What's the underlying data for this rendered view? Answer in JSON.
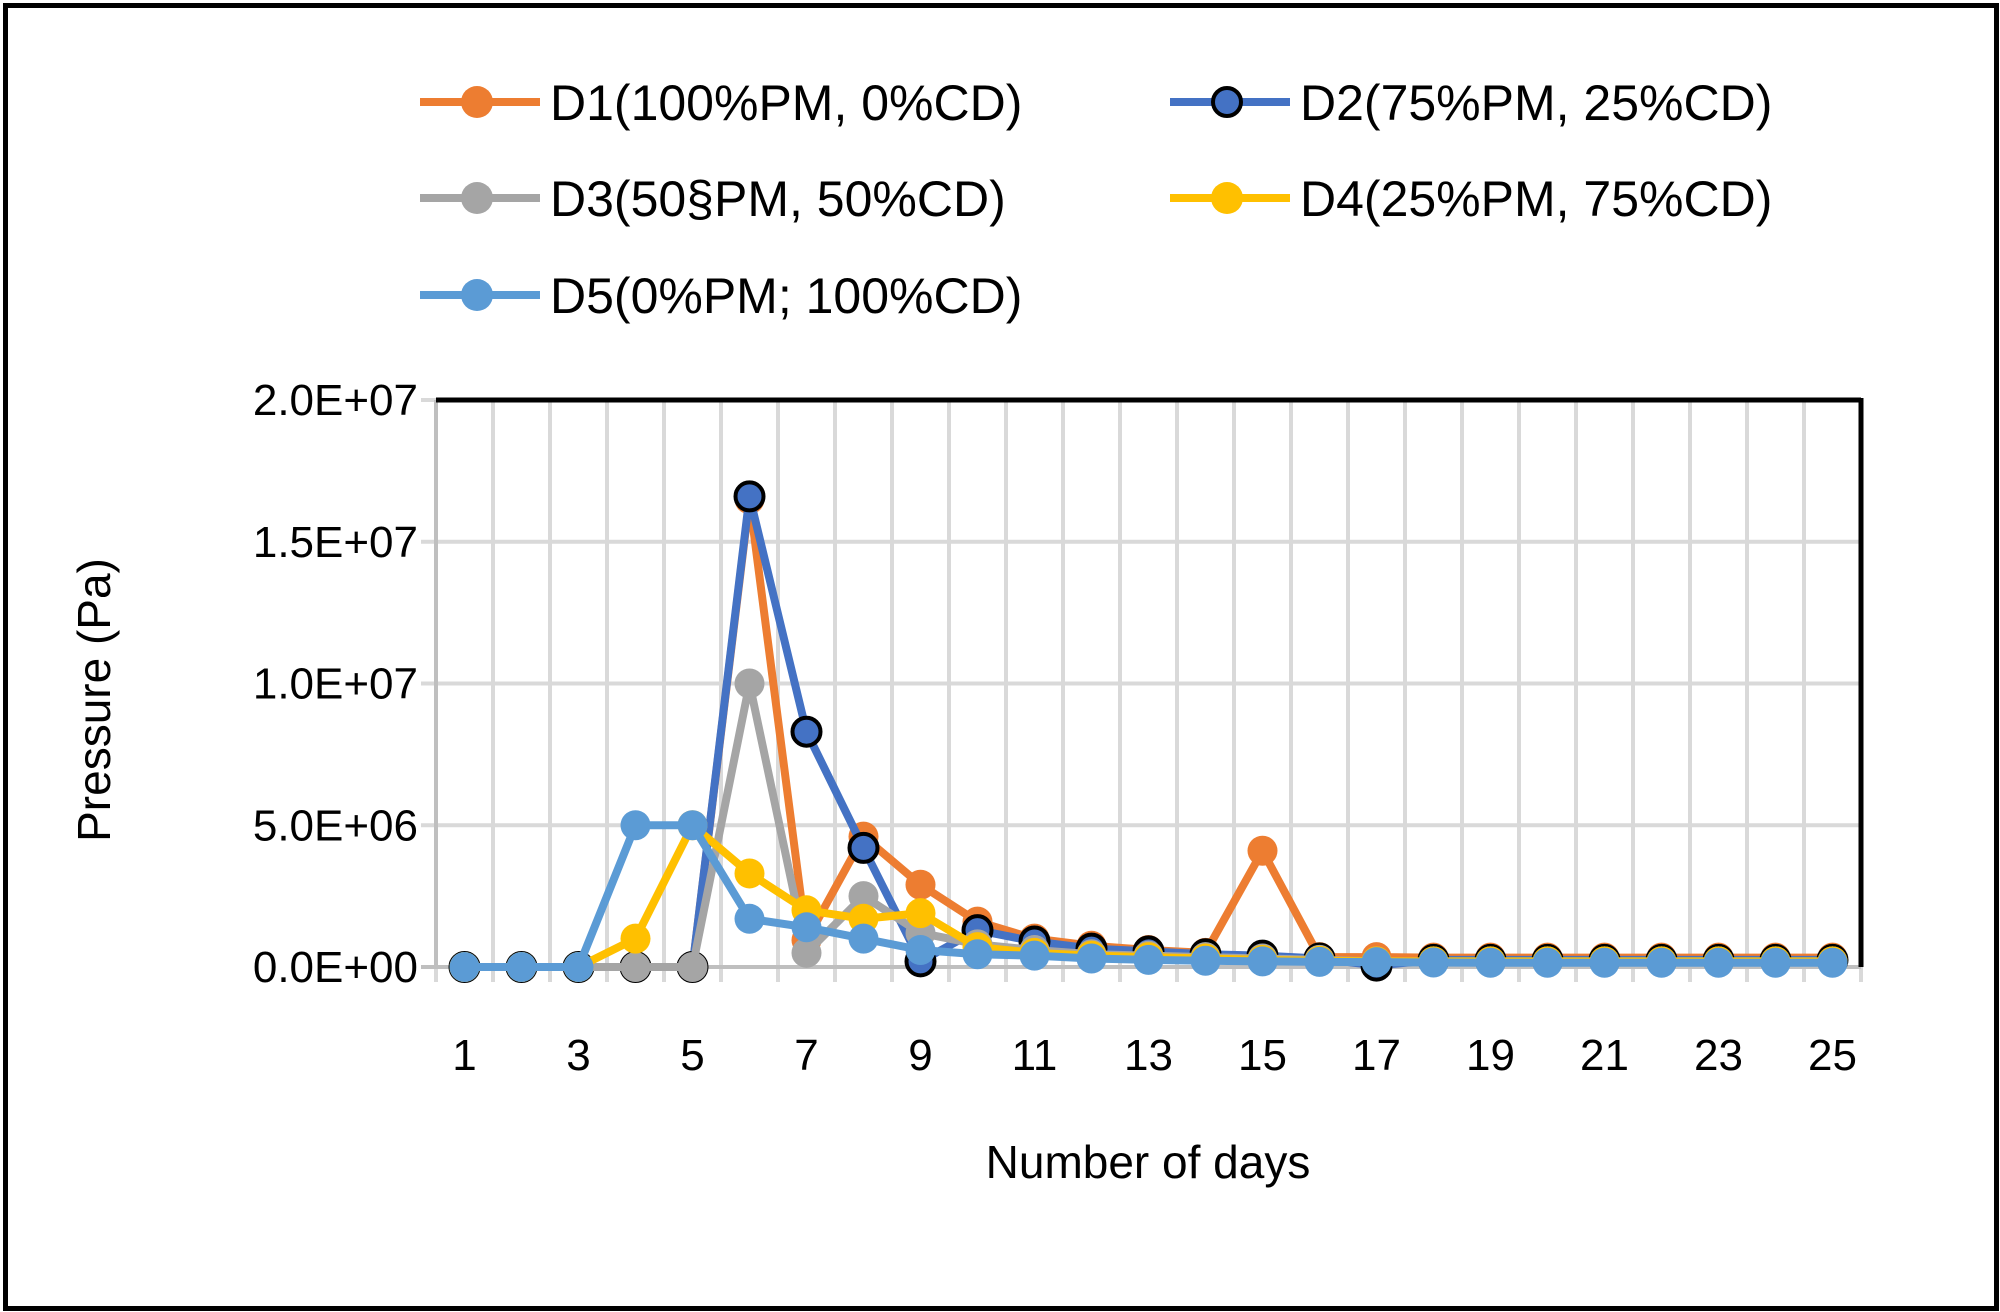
{
  "chart_data": {
    "type": "line",
    "title": "",
    "xlabel": "Number of days",
    "ylabel": "Pressure (Pa)",
    "x": [
      1,
      2,
      3,
      4,
      5,
      6,
      7,
      8,
      9,
      10,
      11,
      12,
      13,
      14,
      15,
      16,
      17,
      18,
      19,
      20,
      21,
      22,
      23,
      24,
      25
    ],
    "x_tick_labels": [
      "1",
      "3",
      "5",
      "7",
      "9",
      "11",
      "13",
      "15",
      "17",
      "19",
      "21",
      "23",
      "25"
    ],
    "y_tick_labels": [
      "0.0E+00",
      "5.0E+06",
      "1.0E+07",
      "1.5E+07",
      "2.0E+07"
    ],
    "y_ticks": [
      0,
      5000000,
      10000000,
      15000000,
      20000000
    ],
    "ylim": [
      0,
      20000000
    ],
    "grid": true,
    "legend_position": "top",
    "series": [
      {
        "name": "D1(100%PM, 0%CD)",
        "color": "#ED7D31",
        "marker_outline": null,
        "values": [
          0,
          0,
          0,
          0,
          0,
          16500000,
          950000,
          4600000,
          2900000,
          1600000,
          1000000,
          750000,
          600000,
          500000,
          4100000,
          350000,
          350000,
          330000,
          330000,
          330000,
          330000,
          330000,
          330000,
          330000,
          330000
        ]
      },
      {
        "name": "D2(75%PM, 25%CD)",
        "color": "#4472C4",
        "marker_outline": "#000000",
        "values": [
          0,
          0,
          0,
          0,
          0,
          16600000,
          8300000,
          4200000,
          200000,
          1300000,
          900000,
          650000,
          550000,
          450000,
          400000,
          300000,
          50000,
          250000,
          250000,
          250000,
          250000,
          250000,
          250000,
          250000,
          250000
        ]
      },
      {
        "name": "D3(50§PM, 50%CD)",
        "color": "#A5A5A5",
        "marker_outline": null,
        "values": [
          0,
          0,
          0,
          0,
          0,
          10000000,
          500000,
          2500000,
          1200000,
          800000,
          600000,
          450000,
          400000,
          350000,
          300000,
          250000,
          200000,
          200000,
          200000,
          200000,
          200000,
          200000,
          200000,
          200000,
          200000
        ]
      },
      {
        "name": "D4(25%PM, 75%CD)",
        "color": "#FFC000",
        "marker_outline": null,
        "values": [
          0,
          0,
          0,
          1000000,
          5000000,
          3300000,
          2000000,
          1700000,
          1900000,
          700000,
          500000,
          400000,
          350000,
          300000,
          250000,
          220000,
          200000,
          200000,
          200000,
          200000,
          200000,
          200000,
          200000,
          200000,
          200000
        ]
      },
      {
        "name": "D5(0%PM; 100%CD)",
        "color": "#5B9BD5",
        "marker_outline": null,
        "values": [
          0,
          0,
          0,
          5000000,
          5000000,
          1700000,
          1400000,
          1000000,
          600000,
          450000,
          400000,
          300000,
          250000,
          220000,
          200000,
          180000,
          170000,
          160000,
          150000,
          150000,
          150000,
          150000,
          150000,
          150000,
          150000
        ]
      }
    ]
  }
}
